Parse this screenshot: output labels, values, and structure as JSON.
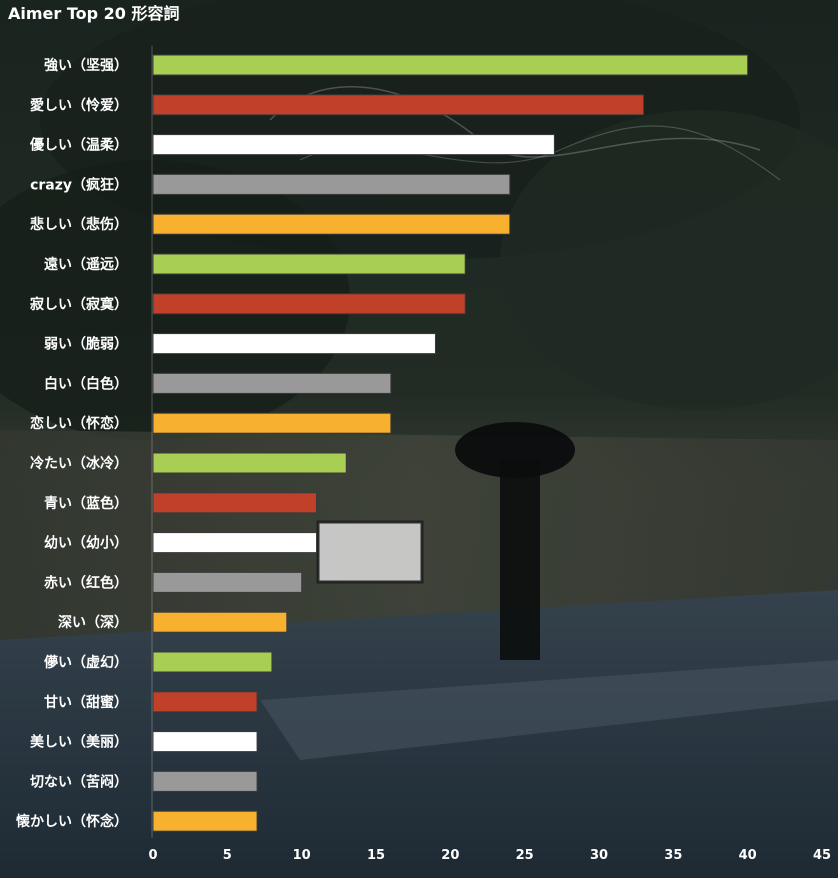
{
  "chart_data": {
    "type": "bar",
    "orientation": "horizontal",
    "title": "Aimer Top 20 形容詞",
    "xlabel": "",
    "ylabel": "",
    "xlim": [
      0,
      45
    ],
    "x_ticks": [
      "0",
      "5",
      "10",
      "15",
      "20",
      "25",
      "30",
      "35",
      "40",
      "45"
    ],
    "grid": false,
    "categories": [
      "強い（坚强）",
      "愛しい（怜爱）",
      "優しい（温柔）",
      "crazy（疯狂）",
      "悲しい（悲伤）",
      "遠い（遥远）",
      "寂しい（寂寞）",
      "弱い（脆弱）",
      "白い（白色）",
      "恋しい（怀恋）",
      "冷たい（冰冷）",
      "青い（蓝色）",
      "幼い（幼小）",
      "赤い（红色）",
      "深い（深）",
      "儚い（虚幻）",
      "甘い（甜蜜）",
      "美しい（美丽）",
      "切ない（苦闷）",
      "懐かしい（怀念）"
    ],
    "values": [
      40,
      33,
      27,
      24,
      24,
      21,
      21,
      19,
      16,
      16,
      13,
      11,
      11,
      10,
      9,
      8,
      7,
      7,
      7,
      7
    ],
    "bar_colors": [
      "#a8cf54",
      "#c0402a",
      "#ffffff",
      "#999999",
      "#f7b12e"
    ]
  }
}
